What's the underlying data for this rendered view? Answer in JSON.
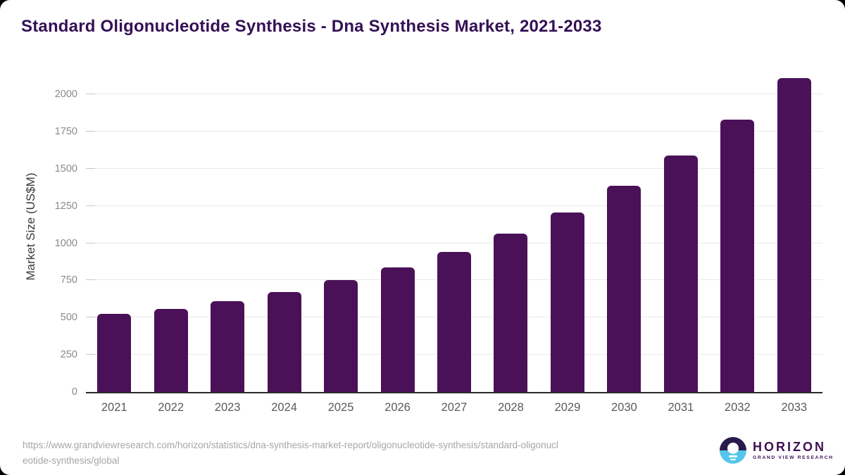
{
  "page": {
    "title": "Standard Oligonucleotide Synthesis - Dna Synthesis Market, 2021-2033"
  },
  "chart_data": {
    "type": "bar",
    "title": "Standard Oligonucleotide Synthesis - Dna Synthesis Market, 2021-2033",
    "categories": [
      "2021",
      "2022",
      "2023",
      "2024",
      "2025",
      "2026",
      "2027",
      "2028",
      "2029",
      "2030",
      "2031",
      "2032",
      "2033"
    ],
    "values": [
      525,
      560,
      610,
      670,
      750,
      835,
      940,
      1065,
      1205,
      1385,
      1590,
      1830,
      2110
    ],
    "xlabel": "",
    "ylabel": "Market Size (US$M)",
    "yticks": [
      0,
      250,
      500,
      750,
      1000,
      1250,
      1500,
      1750,
      2000
    ],
    "ylim": [
      0,
      2000
    ],
    "grid": "horizontal",
    "legend": false,
    "bar_color": "#4a1158"
  },
  "footer": {
    "source_url_lines": [
      "https://www.grandviewresearch.com/horizon/statistics/dna-synthesis-market-report/oligonucleotide-synthesis/standard-oligonucl",
      "eotide-synthesis/global"
    ],
    "logo": {
      "brand": "HORIZON",
      "subtitle": "GRAND VIEW RESEARCH"
    }
  },
  "colors": {
    "bar": "#4a1158",
    "title": "#341055",
    "axis_line": "#2b2b2b",
    "gridline": "#e9e9e9",
    "tick_label": "#8a8a8a",
    "category_label": "#5a5a5a",
    "footer_text": "#a6a6a6",
    "logo_dark": "#2b1b4d",
    "logo_blue": "#55c6ea",
    "logo_text": "#3d1152"
  }
}
